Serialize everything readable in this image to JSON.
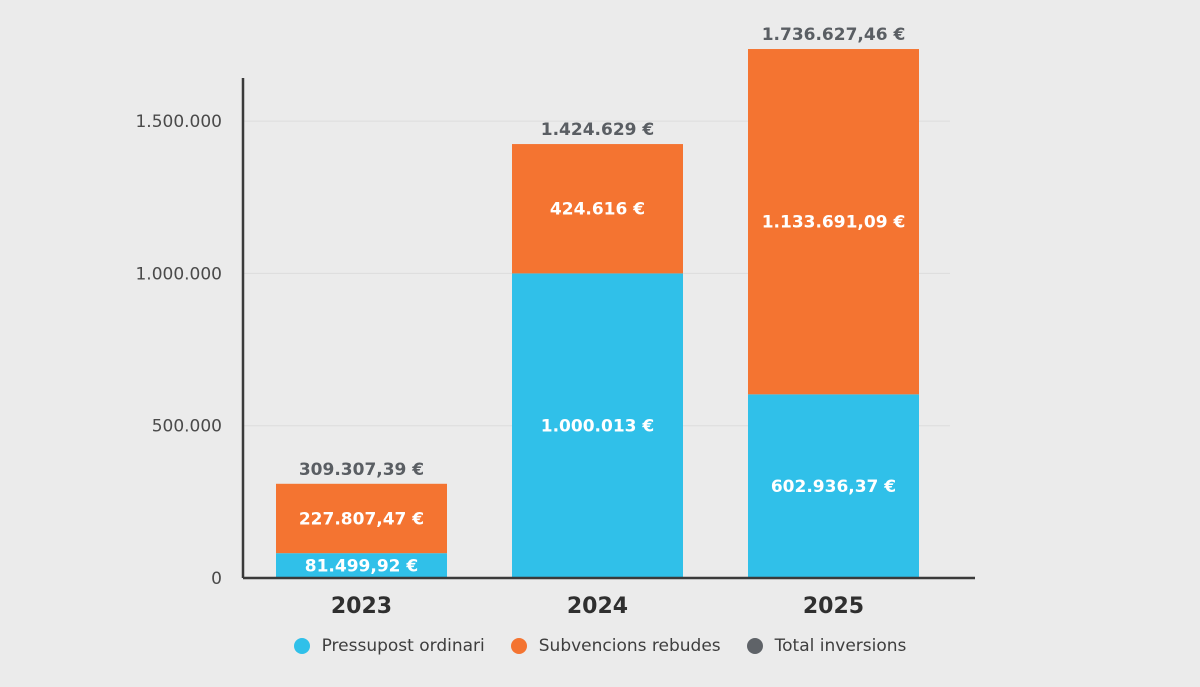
{
  "chart_data": {
    "type": "bar",
    "stacked": true,
    "categories": [
      "2023",
      "2024",
      "2025"
    ],
    "series": [
      {
        "name": "Pressupost ordinari",
        "color": "#30c0e9",
        "values": [
          81499.92,
          1000013,
          602936.37
        ],
        "labels": [
          "81.499,92 €",
          "1.000.013 €",
          "602.936,37 €"
        ]
      },
      {
        "name": "Subvencions rebudes",
        "color": "#f47431",
        "values": [
          227807.47,
          424616,
          1133691.09
        ],
        "labels": [
          "227.807,47 €",
          "424.616 €",
          "1.133.691,09 €"
        ]
      }
    ],
    "totals": {
      "name": "Total inversions",
      "color": "#5f6368",
      "values": [
        309307.39,
        1424629,
        1736627.46
      ],
      "labels": [
        "309.307,39 €",
        "1.424.629 €",
        "1.736.627,46 €"
      ]
    },
    "y_ticks": [
      0,
      500000,
      1000000,
      1500000
    ],
    "y_tick_labels": [
      "0",
      "500.000",
      "1.000.000",
      "1.500.000"
    ],
    "ylim": [
      0,
      1650000
    ],
    "legend_position": "bottom-center"
  }
}
